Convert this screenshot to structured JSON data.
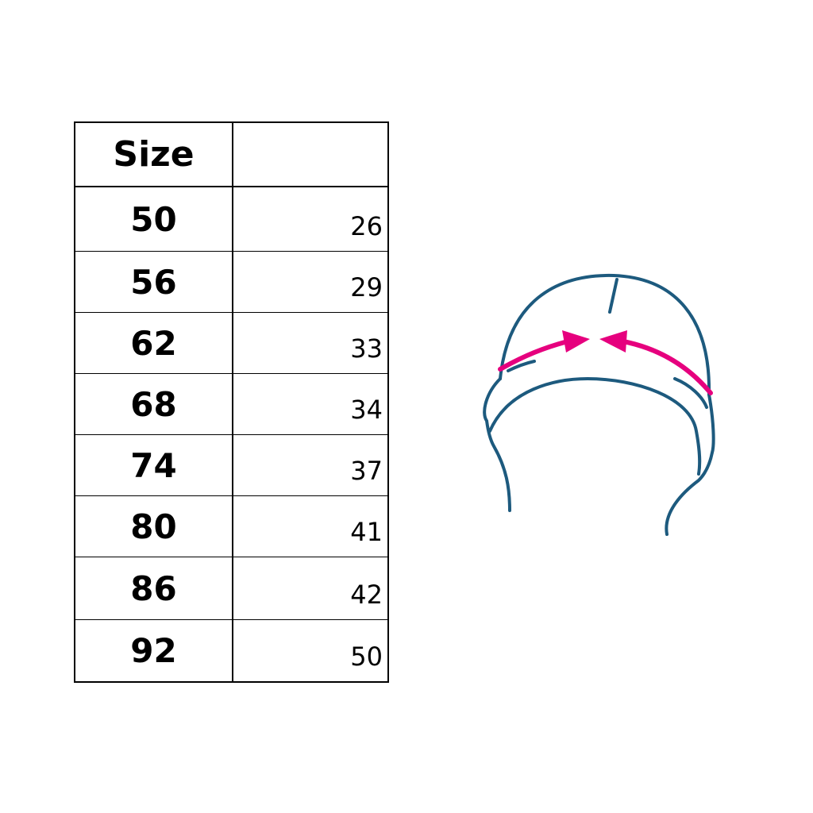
{
  "table": {
    "header": {
      "size_label": "Size",
      "value_label": ""
    },
    "rows": [
      {
        "size": "50",
        "value": "26"
      },
      {
        "size": "56",
        "value": "29"
      },
      {
        "size": "62",
        "value": "33"
      },
      {
        "size": "68",
        "value": "34"
      },
      {
        "size": "74",
        "value": "37"
      },
      {
        "size": "80",
        "value": "41"
      },
      {
        "size": "86",
        "value": "42"
      },
      {
        "size": "92",
        "value": "50"
      }
    ]
  },
  "illustration": {
    "icon": "hat-measurement-icon",
    "line_color": "#1d5a7e",
    "arrow_color": "#e6007e"
  }
}
